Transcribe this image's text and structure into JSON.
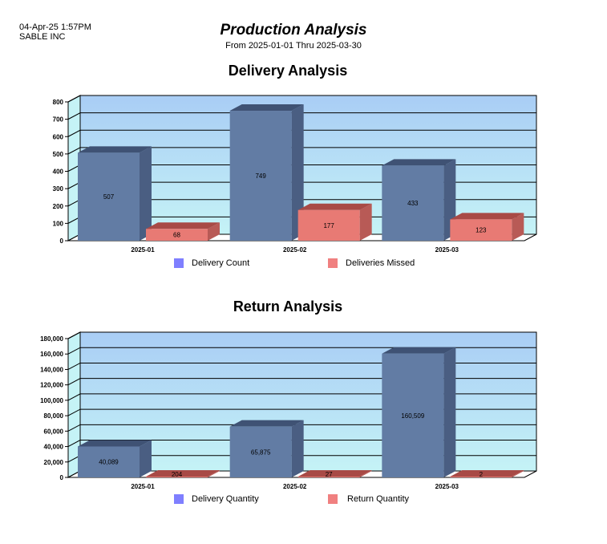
{
  "header": {
    "datetime": "04-Apr-25  1:57PM",
    "company": "SABLE INC",
    "title": "Production Analysis",
    "subtitle": "From 2025-01-01 Thru 2025-03-30"
  },
  "colors": {
    "series1": "#627ca4",
    "series1_top": "#3f5274",
    "series1_side": "#4a5e82",
    "series2": "#e87a74",
    "series2_top": "#a84a46",
    "series2_side": "#b85a56",
    "legend1": "#7f7fff",
    "legend2": "#f08080",
    "plot_top": "#a9cdf5",
    "plot_bottom": "#c5f3f6"
  },
  "chart_data": [
    {
      "type": "bar",
      "title": "Delivery Analysis",
      "categories": [
        "2025-01",
        "2025-02",
        "2025-03"
      ],
      "series": [
        {
          "name": "Delivery Count",
          "values": [
            507,
            749,
            433
          ]
        },
        {
          "name": "Deliveries Missed",
          "values": [
            68,
            177,
            123
          ]
        }
      ],
      "ylim": [
        0,
        800
      ],
      "yticks": [
        "0",
        "100",
        "200",
        "300",
        "400",
        "500",
        "600",
        "700",
        "800"
      ],
      "data_labels": [
        [
          "507",
          "749",
          "433"
        ],
        [
          "68",
          "177",
          "123"
        ]
      ],
      "grid": true,
      "legend": "bottom"
    },
    {
      "type": "bar",
      "title": "Return Analysis",
      "categories": [
        "2025-01",
        "2025-02",
        "2025-03"
      ],
      "series": [
        {
          "name": "Delivery Quantity",
          "values": [
            40089,
            65875,
            160509
          ]
        },
        {
          "name": "Return Quantity",
          "values": [
            204,
            27,
            2
          ]
        }
      ],
      "ylim": [
        0,
        180000
      ],
      "yticks": [
        "0",
        "20,000",
        "40,000",
        "60,000",
        "80,000",
        "100,000",
        "120,000",
        "140,000",
        "160,000",
        "180,000"
      ],
      "data_labels": [
        [
          "40,089",
          "65,875",
          "160,509"
        ],
        [
          "204",
          "27",
          "2"
        ]
      ],
      "grid": true,
      "legend": "bottom"
    }
  ]
}
